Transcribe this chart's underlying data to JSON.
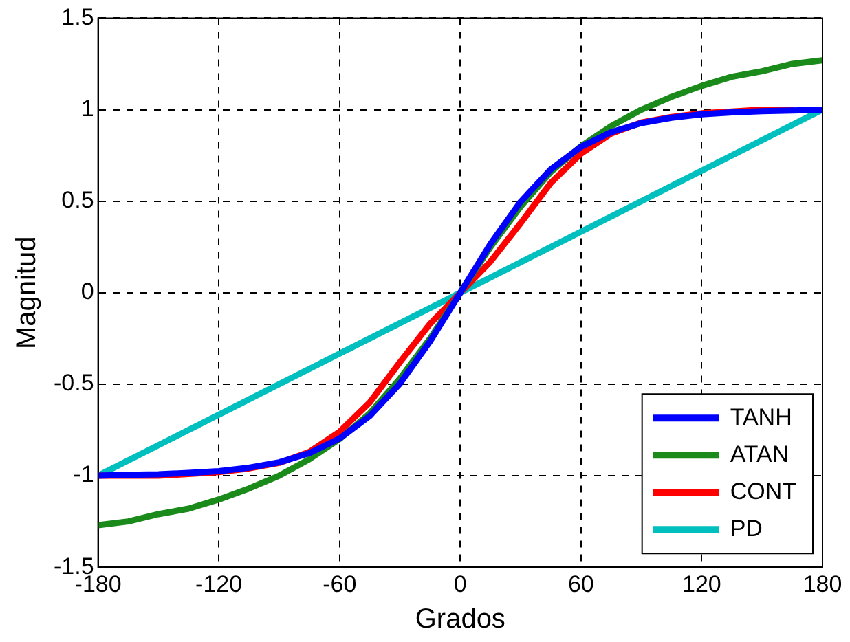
{
  "chart_data": {
    "type": "line",
    "xlabel": "Grados",
    "ylabel": "Magnitud",
    "x": [
      -180,
      -165,
      -150,
      -135,
      -120,
      -105,
      -90,
      -75,
      -60,
      -45,
      -30,
      -15,
      0,
      15,
      30,
      45,
      60,
      75,
      90,
      105,
      120,
      135,
      150,
      165,
      180
    ],
    "series": [
      {
        "name": "TANH",
        "color": "#0000ff",
        "values": [
          -1.0,
          -0.995,
          -0.992,
          -0.985,
          -0.975,
          -0.956,
          -0.927,
          -0.877,
          -0.797,
          -0.674,
          -0.497,
          -0.266,
          0,
          0.266,
          0.497,
          0.674,
          0.797,
          0.877,
          0.927,
          0.956,
          0.975,
          0.985,
          0.992,
          0.995,
          1.0
        ]
      },
      {
        "name": "ATAN",
        "color": "#1a8a1a",
        "values": [
          -1.27,
          -1.25,
          -1.21,
          -1.18,
          -1.13,
          -1.07,
          -1.0,
          -0.91,
          -0.8,
          -0.66,
          -0.47,
          -0.25,
          0,
          0.25,
          0.47,
          0.66,
          0.8,
          0.91,
          1.0,
          1.07,
          1.13,
          1.18,
          1.21,
          1.25,
          1.27
        ]
      },
      {
        "name": "CONT",
        "color": "#ff0000",
        "values": [
          -1.0,
          -1.0,
          -1.0,
          -0.99,
          -0.98,
          -0.96,
          -0.93,
          -0.87,
          -0.76,
          -0.6,
          -0.38,
          -0.17,
          0,
          0.17,
          0.38,
          0.6,
          0.76,
          0.87,
          0.93,
          0.96,
          0.98,
          0.99,
          1.0,
          1.0,
          null
        ]
      },
      {
        "name": "PD",
        "color": "#00bfbf",
        "x": [
          -180,
          180
        ],
        "values": [
          -1,
          1
        ]
      }
    ],
    "xlim": [
      -180,
      180
    ],
    "xticks": [
      -180,
      -120,
      -60,
      0,
      60,
      120,
      180
    ],
    "ylim": [
      -1.5,
      1.5
    ],
    "yticks": [
      -1.5,
      -1,
      -0.5,
      0,
      0.5,
      1,
      1.5
    ],
    "grid": true,
    "legend": "bottom right",
    "marker": "none",
    "line_style": "solid"
  }
}
